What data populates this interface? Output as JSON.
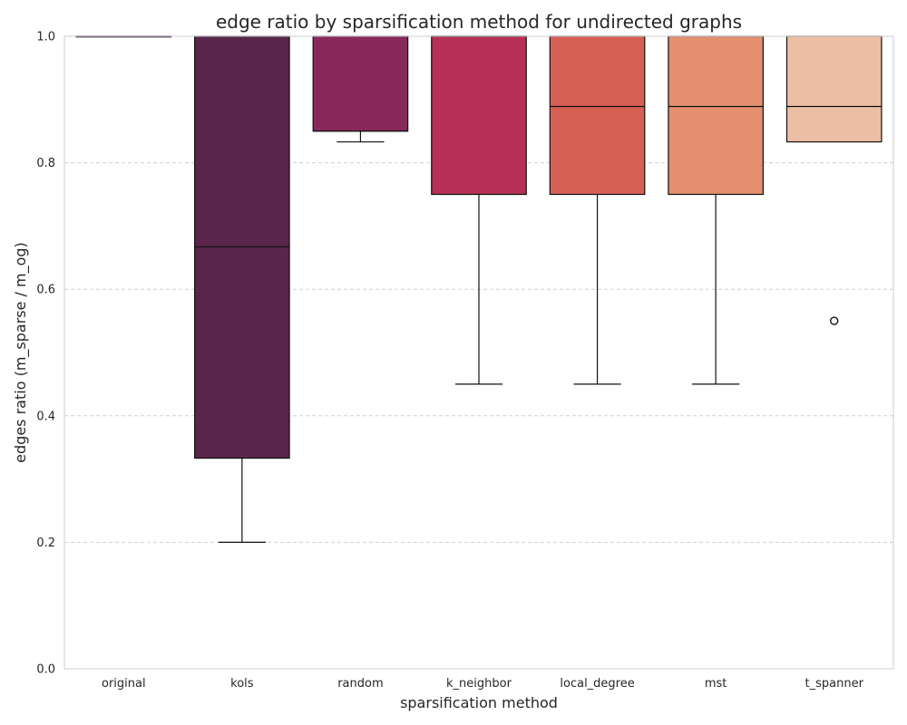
{
  "chart_data": {
    "type": "box",
    "title": "edge ratio by sparsification method for undirected graphs",
    "xlabel": "sparsification method",
    "ylabel": "edges ratio (m_sparse / m_og)",
    "ylim": [
      0,
      1
    ],
    "yticks": [
      "0.0",
      "0.2",
      "0.4",
      "0.6",
      "0.8",
      "1.0"
    ],
    "grid": "y-dashed",
    "categories": [
      "original",
      "kols",
      "random",
      "k_neighbor",
      "local_degree",
      "mst",
      "t_spanner"
    ],
    "boxes": [
      {
        "category": "original",
        "whisker_low": 1.0,
        "q1": 1.0,
        "median": 1.0,
        "q3": 1.0,
        "whisker_high": 1.0,
        "outliers": [],
        "color": "#3b1d47"
      },
      {
        "category": "kols",
        "whisker_low": 0.2,
        "q1": 0.333,
        "median": 0.667,
        "q3": 1.0,
        "whisker_high": 1.0,
        "outliers": [],
        "color": "#5a254b"
      },
      {
        "category": "random",
        "whisker_low": 0.833,
        "q1": 0.85,
        "median": 0.85,
        "q3": 1.0,
        "whisker_high": 1.0,
        "outliers": [],
        "color": "#882a59"
      },
      {
        "category": "k_neighbor",
        "whisker_low": 0.45,
        "q1": 0.75,
        "median": 1.0,
        "q3": 1.0,
        "whisker_high": 1.0,
        "outliers": [],
        "color": "#b63155"
      },
      {
        "category": "local_degree",
        "whisker_low": 0.45,
        "q1": 0.75,
        "median": 0.889,
        "q3": 1.0,
        "whisker_high": 1.0,
        "outliers": [],
        "color": "#d76054"
      },
      {
        "category": "mst",
        "whisker_low": 0.45,
        "q1": 0.75,
        "median": 0.889,
        "q3": 1.0,
        "whisker_high": 1.0,
        "outliers": [],
        "color": "#e38f70"
      },
      {
        "category": "t_spanner",
        "whisker_low": 0.833,
        "q1": 0.833,
        "median": 0.889,
        "q3": 1.0,
        "whisker_high": 1.0,
        "outliers": [
          0.55
        ],
        "color": "#ecbea4"
      }
    ]
  }
}
